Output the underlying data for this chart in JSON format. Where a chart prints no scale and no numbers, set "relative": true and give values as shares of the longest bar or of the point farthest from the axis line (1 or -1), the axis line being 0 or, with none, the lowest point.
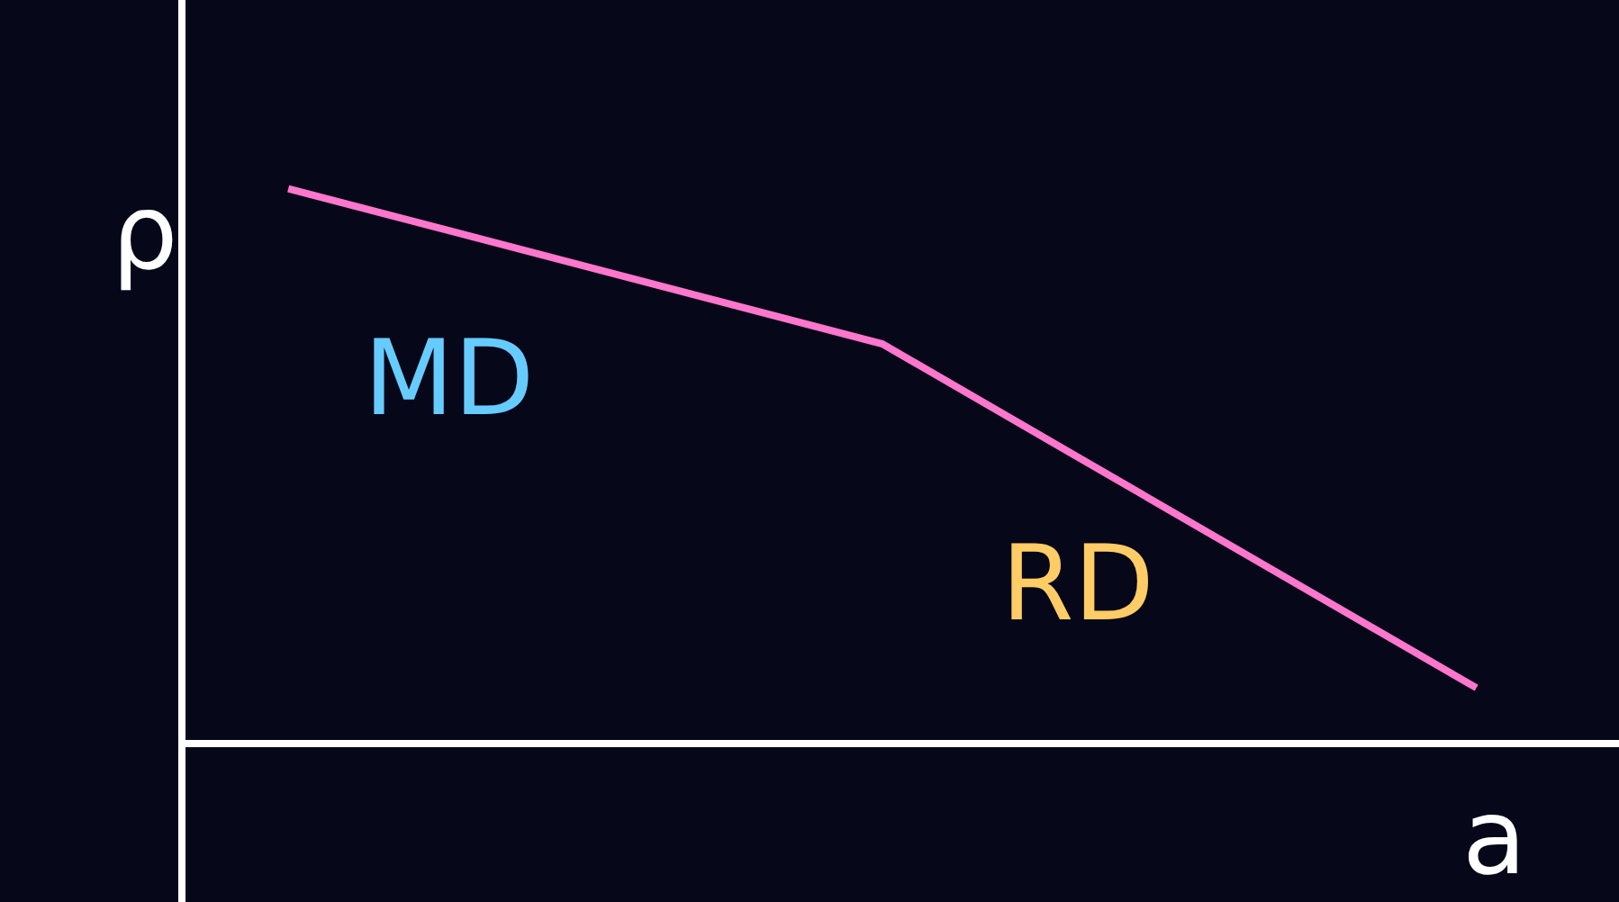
{
  "chart_data": {
    "type": "line",
    "relative": true,
    "xlabel": "a",
    "ylabel": "ρ",
    "categories": [
      null,
      null,
      null
    ],
    "series": [
      {
        "color": "#ff77cc",
        "values": [
          1,
          0.72,
          0.1
        ]
      }
    ],
    "annotations": [
      "MD",
      "RD"
    ],
    "grid": false,
    "legend": false,
    "marker": "none",
    "line_style": "solid"
  }
}
